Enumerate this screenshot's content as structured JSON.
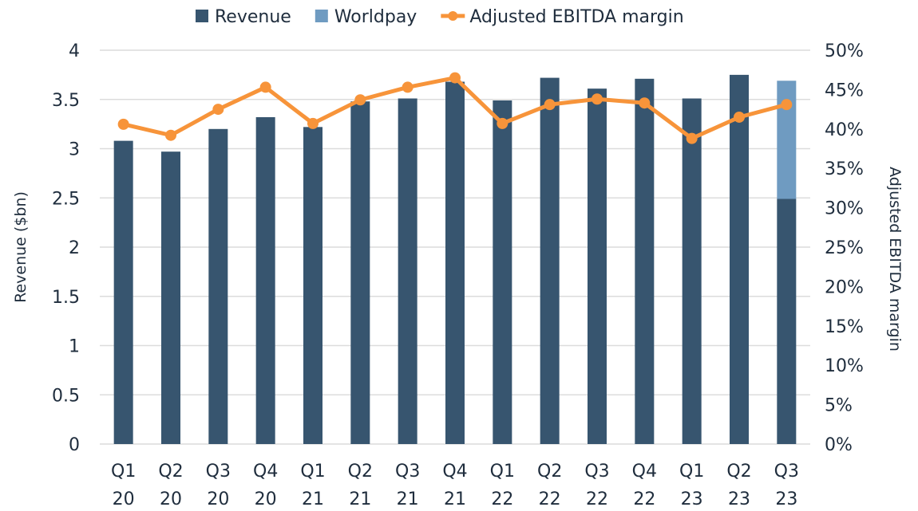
{
  "chart_data": {
    "type": "bar",
    "title": "",
    "categories": [
      [
        "Q1",
        "20"
      ],
      [
        "Q2",
        "20"
      ],
      [
        "Q3",
        "20"
      ],
      [
        "Q4",
        "20"
      ],
      [
        "Q1",
        "21"
      ],
      [
        "Q2",
        "21"
      ],
      [
        "Q3",
        "21"
      ],
      [
        "Q4",
        "21"
      ],
      [
        "Q1",
        "22"
      ],
      [
        "Q2",
        "22"
      ],
      [
        "Q3",
        "22"
      ],
      [
        "Q4",
        "22"
      ],
      [
        "Q1",
        "23"
      ],
      [
        "Q2",
        "23"
      ],
      [
        "Q3",
        "23"
      ]
    ],
    "series": [
      {
        "name": "Revenue",
        "type": "bar",
        "stack": "rev",
        "axis": "left",
        "color": "#37556f",
        "values": [
          3.08,
          2.97,
          3.2,
          3.32,
          3.22,
          3.48,
          3.51,
          3.68,
          3.49,
          3.72,
          3.61,
          3.71,
          3.51,
          3.75,
          2.49
        ]
      },
      {
        "name": "Worldpay",
        "type": "bar",
        "stack": "rev",
        "axis": "left",
        "color": "#6f9bc1",
        "values": [
          0,
          0,
          0,
          0,
          0,
          0,
          0,
          0,
          0,
          0,
          0,
          0,
          0,
          0,
          1.2
        ]
      },
      {
        "name": "Adjusted EBITDA margin",
        "type": "line",
        "axis": "right",
        "color": "#f7943a",
        "values": [
          40.6,
          39.2,
          42.5,
          45.3,
          40.7,
          43.7,
          45.3,
          46.5,
          40.7,
          43.1,
          43.8,
          43.3,
          38.8,
          41.5,
          43.1
        ]
      }
    ],
    "ylabel": "Revenue ($bn)",
    "y2label": "Adjusted EBITDA margin",
    "ylim": [
      0,
      4
    ],
    "y2lim": [
      0,
      50
    ],
    "yticks": [
      "0",
      "0.5",
      "1",
      "1.5",
      "2",
      "2.5",
      "3",
      "3.5",
      "4"
    ],
    "y2ticks": [
      "0%",
      "5%",
      "10%",
      "15%",
      "20%",
      "25%",
      "30%",
      "35%",
      "40%",
      "45%",
      "50%"
    ],
    "grid": true,
    "legend_position": "top",
    "gridline_color": "#dcdcdc"
  }
}
